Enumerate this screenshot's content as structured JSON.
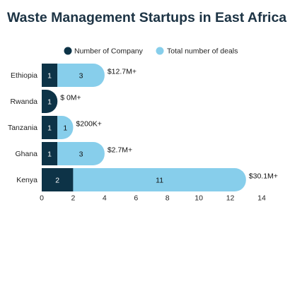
{
  "chart_data": {
    "type": "bar",
    "orientation": "horizontal",
    "stacked": true,
    "title": "Waste Management Startups in East Africa",
    "categories": [
      "Ethiopia",
      "Rwanda",
      "Tanzania",
      "Ghana",
      "Kenya"
    ],
    "series": [
      {
        "name": "Number of Company",
        "values": [
          1,
          1,
          1,
          1,
          2
        ],
        "color": "#0d3347"
      },
      {
        "name": "Total number of deals",
        "values": [
          3,
          0,
          1,
          3,
          11
        ],
        "color": "#87ceeb"
      }
    ],
    "annotations": [
      "$12.7M+",
      "$ 0M+",
      "$200K+",
      "$2.7M+",
      "$30.1M+"
    ],
    "xticks": [
      0,
      2,
      4,
      6,
      8,
      10,
      12,
      14
    ],
    "xlim": [
      0,
      14
    ],
    "xlabel": "",
    "ylabel": "",
    "legend_position": "top",
    "grid": false
  }
}
